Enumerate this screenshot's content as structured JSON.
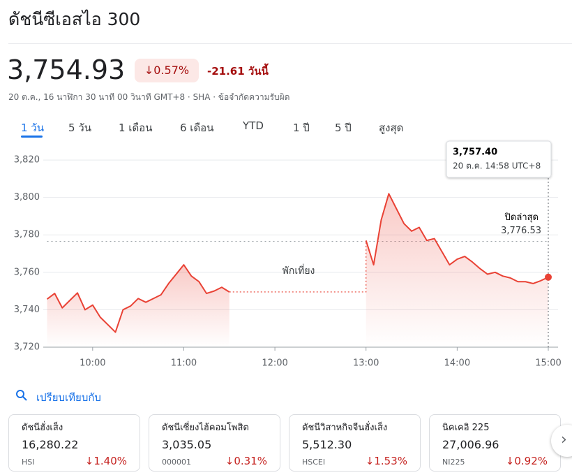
{
  "header": {
    "title": "ดัชนีซีเอสไอ 300",
    "price": "3,754.93",
    "change_pct": "↓0.57%",
    "change_abs": "-21.61 วันนี้",
    "meta": "20 ต.ค., 16 นาฬิกา 30 นาที 00 วินาที GMT+8 · SHA · ข้อจำกัดความรับผิด"
  },
  "tabs": [
    "1 วัน",
    "5 วัน",
    "1 เดือน",
    "6 เดือน",
    "YTD",
    "1 ปี",
    "5 ปี",
    "สูงสุด"
  ],
  "chart_data": {
    "type": "line",
    "color": "#e94235",
    "x": [
      570,
      575,
      580,
      585,
      590,
      595,
      600,
      605,
      610,
      615,
      620,
      625,
      630,
      635,
      640,
      645,
      650,
      655,
      660,
      665,
      670,
      675,
      680,
      685,
      690,
      720,
      780,
      785,
      790,
      795,
      800,
      805,
      810,
      815,
      820,
      825,
      830,
      835,
      840,
      845,
      850,
      855,
      860,
      865,
      870,
      875,
      880,
      885,
      890,
      895,
      900
    ],
    "values": [
      3745.7,
      3748.7,
      3741,
      3745,
      3749,
      3740,
      3742.5,
      3736,
      3732,
      3728,
      3740,
      3742,
      3746,
      3744,
      3746,
      3748,
      3754,
      3759,
      3764,
      3758,
      3755,
      3748.7,
      3750,
      3752,
      3749.5,
      null,
      3777,
      3764,
      3788,
      3802,
      3794,
      3786,
      3782,
      3784,
      3777,
      3778,
      3771,
      3764,
      3767,
      3768.5,
      3765.5,
      3762,
      3759,
      3760,
      3758,
      3757,
      3755,
      3755,
      3754,
      3755.5,
      3757.4
    ],
    "xlim": [
      570,
      900
    ],
    "xticks": [
      {
        "value": 600,
        "label": "10:00"
      },
      {
        "value": 660,
        "label": "11:00"
      },
      {
        "value": 720,
        "label": "12:00"
      },
      {
        "value": 780,
        "label": "13:00"
      },
      {
        "value": 840,
        "label": "14:00"
      },
      {
        "value": 900,
        "label": "15:00"
      }
    ],
    "ylim": [
      3720,
      3826
    ],
    "yticks": [
      {
        "value": 3720,
        "label": "3,720"
      },
      {
        "value": 3740,
        "label": "3,740"
      },
      {
        "value": 3760,
        "label": "3,760"
      },
      {
        "value": 3780,
        "label": "3,780"
      },
      {
        "value": 3800,
        "label": "3,800"
      },
      {
        "value": 3820,
        "label": "3,820"
      }
    ],
    "grid": true,
    "previous_close": {
      "name": "ปิดล่าสุด",
      "value": 3776.53,
      "label": "3,776.53"
    },
    "annotation": "พักเที่ยง",
    "tooltip": {
      "value": 3757.4,
      "label": "3,757.40",
      "time": "20 ต.ค. 14:58 UTC+8"
    }
  },
  "compare": {
    "title": "เปรียบเทียบกับ",
    "cards": [
      {
        "name": "ดัชนีฮั่งเส็ง",
        "price": "16,280.22",
        "symbol": "HSI",
        "change": "↓1.40%"
      },
      {
        "name": "ดัชนีเซี่ยงไฮ้คอมโพสิต",
        "price": "3,035.05",
        "symbol": "000001",
        "change": "↓0.31%"
      },
      {
        "name": "ดัชนีวิสาหกิจจีนฮั่งเส็ง",
        "price": "5,512.30",
        "symbol": "HSCEI",
        "change": "↓1.53%"
      },
      {
        "name": "นิคเคอิ 225",
        "price": "27,006.96",
        "symbol": "NI225",
        "change": "↓0.92%"
      }
    ]
  }
}
